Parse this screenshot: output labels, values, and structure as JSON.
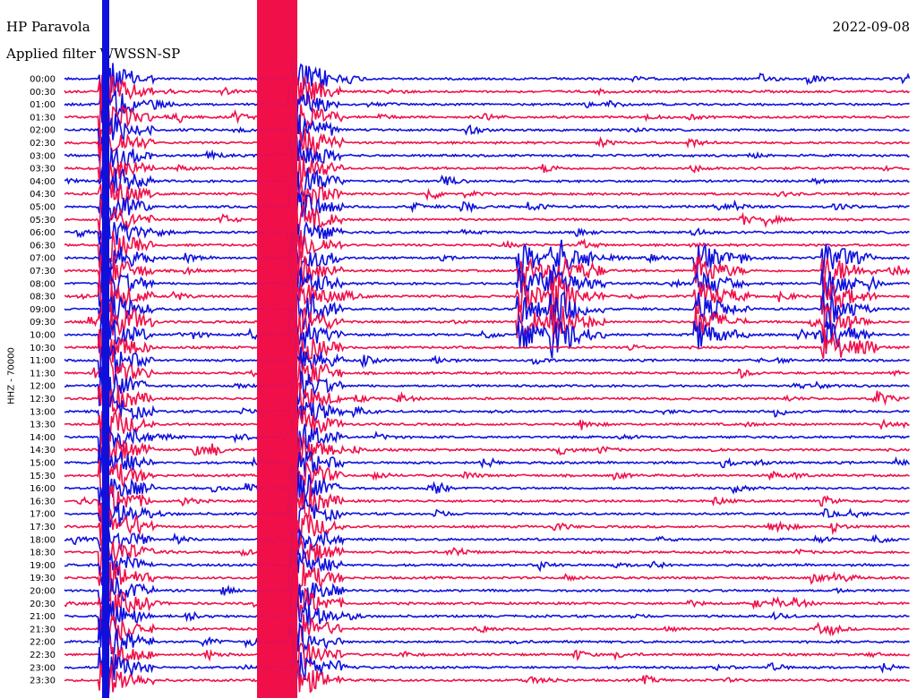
{
  "header": {
    "station": "HP Paravola",
    "filter": "Applied filter WWSSN-SP",
    "date": "2022-09-08"
  },
  "chart_data": {
    "type": "line",
    "title": "HP Paravola",
    "subtitle": "Applied filter WWSSN-SP",
    "date": "2022-09-08",
    "ylabel": "HHZ - 70000",
    "y_tick_labels": [
      "00:00",
      "00:30",
      "01:00",
      "01:30",
      "02:00",
      "02:30",
      "03:00",
      "03:30",
      "04:00",
      "04:30",
      "05:00",
      "05:30",
      "06:00",
      "06:30",
      "07:00",
      "07:30",
      "08:00",
      "08:30",
      "09:00",
      "09:30",
      "10:00",
      "10:30",
      "11:00",
      "11:30",
      "12:00",
      "12:30",
      "13:00",
      "13:30",
      "14:00",
      "14:30",
      "15:00",
      "15:30",
      "16:00",
      "16:30",
      "17:00",
      "17:30",
      "18:00",
      "18:30",
      "19:00",
      "19:30",
      "20:00",
      "20:30",
      "21:00",
      "21:30",
      "22:00",
      "22:30",
      "23:00",
      "23:30"
    ],
    "colors": {
      "even_traces": "#1010dd",
      "odd_traces": "#f0104a",
      "background": "#ffffff"
    },
    "events": [
      {
        "rows": [
          0,
          47
        ],
        "x_frac": 0.045,
        "amp": 1.0,
        "note": "large signal"
      },
      {
        "rows": [
          0,
          47
        ],
        "x_frac": 0.27,
        "amp": 1.0,
        "note": "saturated band"
      },
      {
        "rows": [
          14,
          20
        ],
        "x_frac": 0.54,
        "amp": 0.7
      },
      {
        "rows": [
          14,
          20
        ],
        "x_frac": 0.58,
        "amp": 0.8
      },
      {
        "rows": [
          14,
          20
        ],
        "x_frac": 0.75,
        "amp": 0.7
      },
      {
        "rows": [
          14,
          21
        ],
        "x_frac": 0.9,
        "amp": 0.8
      }
    ]
  }
}
